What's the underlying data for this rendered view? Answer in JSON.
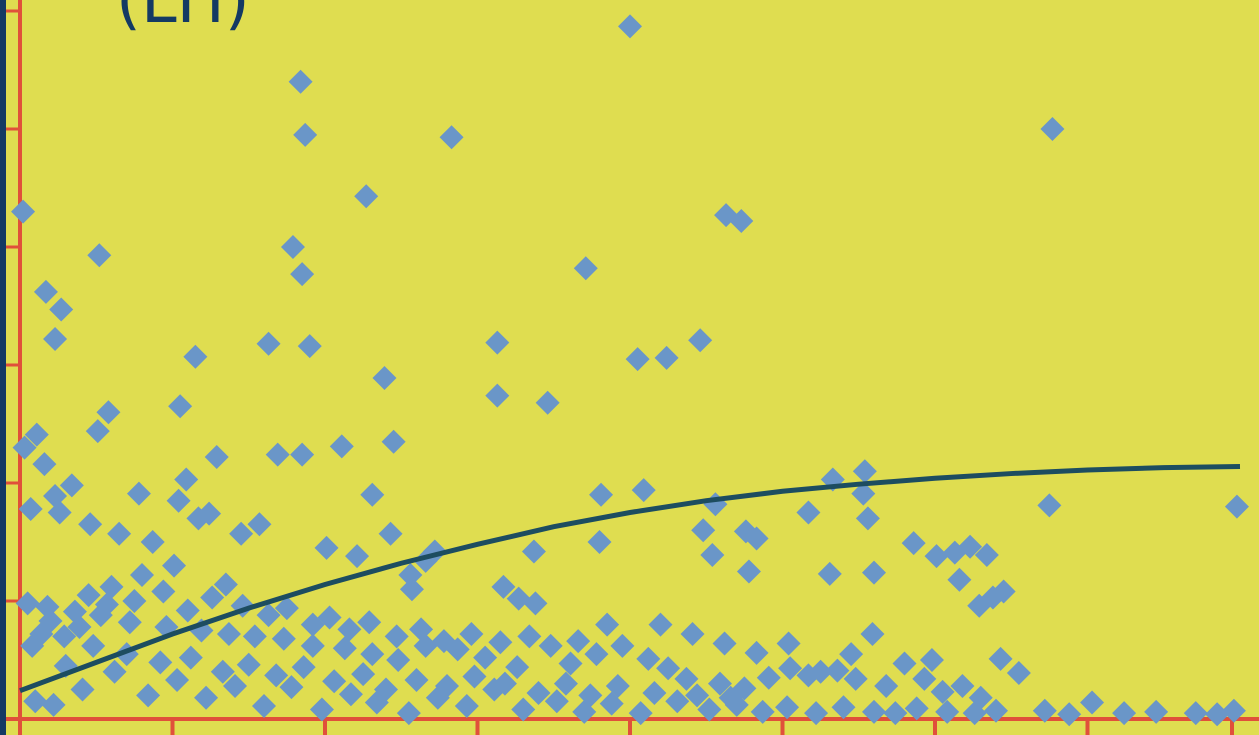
{
  "chart_data": {
    "type": "scatter",
    "title": "(LH)",
    "xlabel": "",
    "ylabel": "",
    "xlim": [
      0,
      8
    ],
    "ylim": [
      0,
      6
    ],
    "grid": true,
    "colors": {
      "plot_bg": "#dfdd50",
      "page_bg": "#143a63",
      "gridline_left": "#e0503a",
      "gridline_right": "#d8dc3c",
      "axis": "#e0503a",
      "marker": "#6a96c8",
      "trend": "#1d4d60",
      "title": "#143a63"
    },
    "trend_line": {
      "type": "curve",
      "points": [
        [
          0,
          0.24
        ],
        [
          0.5,
          0.48
        ],
        [
          1,
          0.72
        ],
        [
          1.5,
          0.94
        ],
        [
          2,
          1.14
        ],
        [
          2.5,
          1.32
        ],
        [
          3,
          1.48
        ],
        [
          3.5,
          1.63
        ],
        [
          4,
          1.75
        ],
        [
          4.5,
          1.85
        ],
        [
          5,
          1.93
        ],
        [
          5.5,
          1.99
        ],
        [
          6,
          2.04
        ],
        [
          6.5,
          2.08
        ],
        [
          7,
          2.11
        ],
        [
          7.5,
          2.13
        ],
        [
          8,
          2.14
        ]
      ]
    },
    "points": [
      [
        0.02,
        4.3
      ],
      [
        4.0,
        5.87
      ],
      [
        1.84,
        5.4
      ],
      [
        1.87,
        4.95
      ],
      [
        2.27,
        4.43
      ],
      [
        2.83,
        4.93
      ],
      [
        6.77,
        5.0
      ],
      [
        4.63,
        4.27
      ],
      [
        1.79,
        4.0
      ],
      [
        1.85,
        3.77
      ],
      [
        0.52,
        3.93
      ],
      [
        0.17,
        3.62
      ],
      [
        0.27,
        3.47
      ],
      [
        0.23,
        3.22
      ],
      [
        1.15,
        3.07
      ],
      [
        1.63,
        3.18
      ],
      [
        1.9,
        3.16
      ],
      [
        2.39,
        2.89
      ],
      [
        3.71,
        3.82
      ],
      [
        3.13,
        3.19
      ],
      [
        3.13,
        2.74
      ],
      [
        3.46,
        2.68
      ],
      [
        4.46,
        3.21
      ],
      [
        4.05,
        3.05
      ],
      [
        4.24,
        3.06
      ],
      [
        4.73,
        4.22
      ],
      [
        0.58,
        2.6
      ],
      [
        0.51,
        2.44
      ],
      [
        1.05,
        2.65
      ],
      [
        0.11,
        2.41
      ],
      [
        0.03,
        2.3
      ],
      [
        0.16,
        2.16
      ],
      [
        0.34,
        1.98
      ],
      [
        0.23,
        1.89
      ],
      [
        0.78,
        1.91
      ],
      [
        1.29,
        2.22
      ],
      [
        1.69,
        2.24
      ],
      [
        1.85,
        2.24
      ],
      [
        2.11,
        2.31
      ],
      [
        2.45,
        2.35
      ],
      [
        1.04,
        1.85
      ],
      [
        1.24,
        1.74
      ],
      [
        1.09,
        2.03
      ],
      [
        1.17,
        1.7
      ],
      [
        2.31,
        1.9
      ],
      [
        2.43,
        1.57
      ],
      [
        3.81,
        1.9
      ],
      [
        4.09,
        1.94
      ],
      [
        4.56,
        1.82
      ],
      [
        5.33,
        2.03
      ],
      [
        5.53,
        1.91
      ],
      [
        5.54,
        2.1
      ],
      [
        5.56,
        1.7
      ],
      [
        5.17,
        1.75
      ],
      [
        6.75,
        1.81
      ],
      [
        7.98,
        1.8
      ],
      [
        0.07,
        1.78
      ],
      [
        0.26,
        1.75
      ],
      [
        0.46,
        1.65
      ],
      [
        0.65,
        1.57
      ],
      [
        0.87,
        1.5
      ],
      [
        1.45,
        1.57
      ],
      [
        1.57,
        1.65
      ],
      [
        2.01,
        1.45
      ],
      [
        2.21,
        1.38
      ],
      [
        2.72,
        1.42
      ],
      [
        3.37,
        1.42
      ],
      [
        3.8,
        1.5
      ],
      [
        4.48,
        1.6
      ],
      [
        4.76,
        1.59
      ],
      [
        4.83,
        1.53
      ],
      [
        4.54,
        1.39
      ],
      [
        4.78,
        1.25
      ],
      [
        5.31,
        1.23
      ],
      [
        5.6,
        1.24
      ],
      [
        5.86,
        1.49
      ],
      [
        6.01,
        1.38
      ],
      [
        6.13,
        1.41
      ],
      [
        6.16,
        1.18
      ],
      [
        6.23,
        1.46
      ],
      [
        6.34,
        1.39
      ],
      [
        6.45,
        1.08
      ],
      [
        6.29,
        0.96
      ],
      [
        6.38,
        1.03
      ],
      [
        3.17,
        1.12
      ],
      [
        3.27,
        1.02
      ],
      [
        3.38,
        0.98
      ],
      [
        2.57,
        1.1
      ],
      [
        2.56,
        1.22
      ],
      [
        2.66,
        1.34
      ],
      [
        0.05,
        0.98
      ],
      [
        0.18,
        0.95
      ],
      [
        0.36,
        0.91
      ],
      [
        0.53,
        0.88
      ],
      [
        0.72,
        0.82
      ],
      [
        0.96,
        0.78
      ],
      [
        1.19,
        0.75
      ],
      [
        1.37,
        0.72
      ],
      [
        1.54,
        0.7
      ],
      [
        1.73,
        0.68
      ],
      [
        1.92,
        0.62
      ],
      [
        2.13,
        0.6
      ],
      [
        2.31,
        0.55
      ],
      [
        2.48,
        0.5
      ],
      [
        2.66,
        0.62
      ],
      [
        2.87,
        0.59
      ],
      [
        3.05,
        0.52
      ],
      [
        3.26,
        0.44
      ],
      [
        3.48,
        0.62
      ],
      [
        3.61,
        0.47
      ],
      [
        3.78,
        0.55
      ],
      [
        3.95,
        0.62
      ],
      [
        4.12,
        0.51
      ],
      [
        4.25,
        0.43
      ],
      [
        4.37,
        0.34
      ],
      [
        4.59,
        0.3
      ],
      [
        4.75,
        0.26
      ],
      [
        4.91,
        0.35
      ],
      [
        5.05,
        0.43
      ],
      [
        5.17,
        0.37
      ],
      [
        5.36,
        0.41
      ],
      [
        5.45,
        0.55
      ],
      [
        5.59,
        0.72
      ],
      [
        5.8,
        0.47
      ],
      [
        5.93,
        0.34
      ],
      [
        6.05,
        0.23
      ],
      [
        6.18,
        0.28
      ],
      [
        6.3,
        0.18
      ],
      [
        6.43,
        0.51
      ],
      [
        6.55,
        0.39
      ],
      [
        6.72,
        0.07
      ],
      [
        6.88,
        0.04
      ],
      [
        7.03,
        0.14
      ],
      [
        7.24,
        0.05
      ],
      [
        7.45,
        0.06
      ],
      [
        7.71,
        0.05
      ],
      [
        7.85,
        0.04
      ],
      [
        7.96,
        0.07
      ],
      [
        0.1,
        0.15
      ],
      [
        0.22,
        0.12
      ],
      [
        0.41,
        0.25
      ],
      [
        0.62,
        0.4
      ],
      [
        0.84,
        0.2
      ],
      [
        1.03,
        0.33
      ],
      [
        1.22,
        0.18
      ],
      [
        1.41,
        0.28
      ],
      [
        1.6,
        0.11
      ],
      [
        1.78,
        0.27
      ],
      [
        1.98,
        0.08
      ],
      [
        2.17,
        0.21
      ],
      [
        2.34,
        0.14
      ],
      [
        2.55,
        0.05
      ],
      [
        2.74,
        0.18
      ],
      [
        2.93,
        0.11
      ],
      [
        3.11,
        0.25
      ],
      [
        3.3,
        0.08
      ],
      [
        3.52,
        0.15
      ],
      [
        3.7,
        0.06
      ],
      [
        3.88,
        0.13
      ],
      [
        4.07,
        0.05
      ],
      [
        4.31,
        0.15
      ],
      [
        4.52,
        0.08
      ],
      [
        4.7,
        0.12
      ],
      [
        4.87,
        0.06
      ],
      [
        5.03,
        0.1
      ],
      [
        5.22,
        0.05
      ],
      [
        5.4,
        0.1
      ],
      [
        5.6,
        0.06
      ],
      [
        5.74,
        0.05
      ],
      [
        5.88,
        0.09
      ],
      [
        6.08,
        0.06
      ],
      [
        6.26,
        0.05
      ],
      [
        6.4,
        0.07
      ],
      [
        0.3,
        0.45
      ],
      [
        0.48,
        0.62
      ],
      [
        0.7,
        0.55
      ],
      [
        0.92,
        0.48
      ],
      [
        1.12,
        0.52
      ],
      [
        1.33,
        0.4
      ],
      [
        1.5,
        0.46
      ],
      [
        1.68,
        0.37
      ],
      [
        1.86,
        0.44
      ],
      [
        2.06,
        0.32
      ],
      [
        2.25,
        0.38
      ],
      [
        2.4,
        0.25
      ],
      [
        2.6,
        0.33
      ],
      [
        2.8,
        0.28
      ],
      [
        2.98,
        0.36
      ],
      [
        3.18,
        0.3
      ],
      [
        3.4,
        0.22
      ],
      [
        3.58,
        0.3
      ],
      [
        3.74,
        0.2
      ],
      [
        3.92,
        0.28
      ],
      [
        4.16,
        0.22
      ],
      [
        4.44,
        0.2
      ],
      [
        4.66,
        0.18
      ],
      [
        0.08,
        0.62
      ],
      [
        0.14,
        0.72
      ],
      [
        0.2,
        0.83
      ],
      [
        0.29,
        0.7
      ],
      [
        0.39,
        0.78
      ],
      [
        0.45,
        1.05
      ],
      [
        0.57,
        0.97
      ],
      [
        0.6,
        1.12
      ],
      [
        0.75,
        1.0
      ],
      [
        0.8,
        1.22
      ],
      [
        0.94,
        1.08
      ],
      [
        1.01,
        1.3
      ],
      [
        1.1,
        0.92
      ],
      [
        1.26,
        1.03
      ],
      [
        1.35,
        1.14
      ],
      [
        1.46,
        0.96
      ],
      [
        1.63,
        0.88
      ],
      [
        1.75,
        0.94
      ],
      [
        1.92,
        0.8
      ],
      [
        2.03,
        0.86
      ],
      [
        2.16,
        0.76
      ],
      [
        2.29,
        0.82
      ],
      [
        2.47,
        0.7
      ],
      [
        2.63,
        0.76
      ],
      [
        2.78,
        0.66
      ],
      [
        2.96,
        0.72
      ],
      [
        3.15,
        0.65
      ],
      [
        3.34,
        0.7
      ],
      [
        3.66,
        0.66
      ],
      [
        3.85,
        0.8
      ],
      [
        4.2,
        0.8
      ],
      [
        4.41,
        0.72
      ],
      [
        4.62,
        0.64
      ],
      [
        4.83,
        0.56
      ],
      [
        5.04,
        0.64
      ],
      [
        5.25,
        0.4
      ],
      [
        5.48,
        0.34
      ],
      [
        5.68,
        0.28
      ],
      [
        5.98,
        0.5
      ]
    ]
  }
}
